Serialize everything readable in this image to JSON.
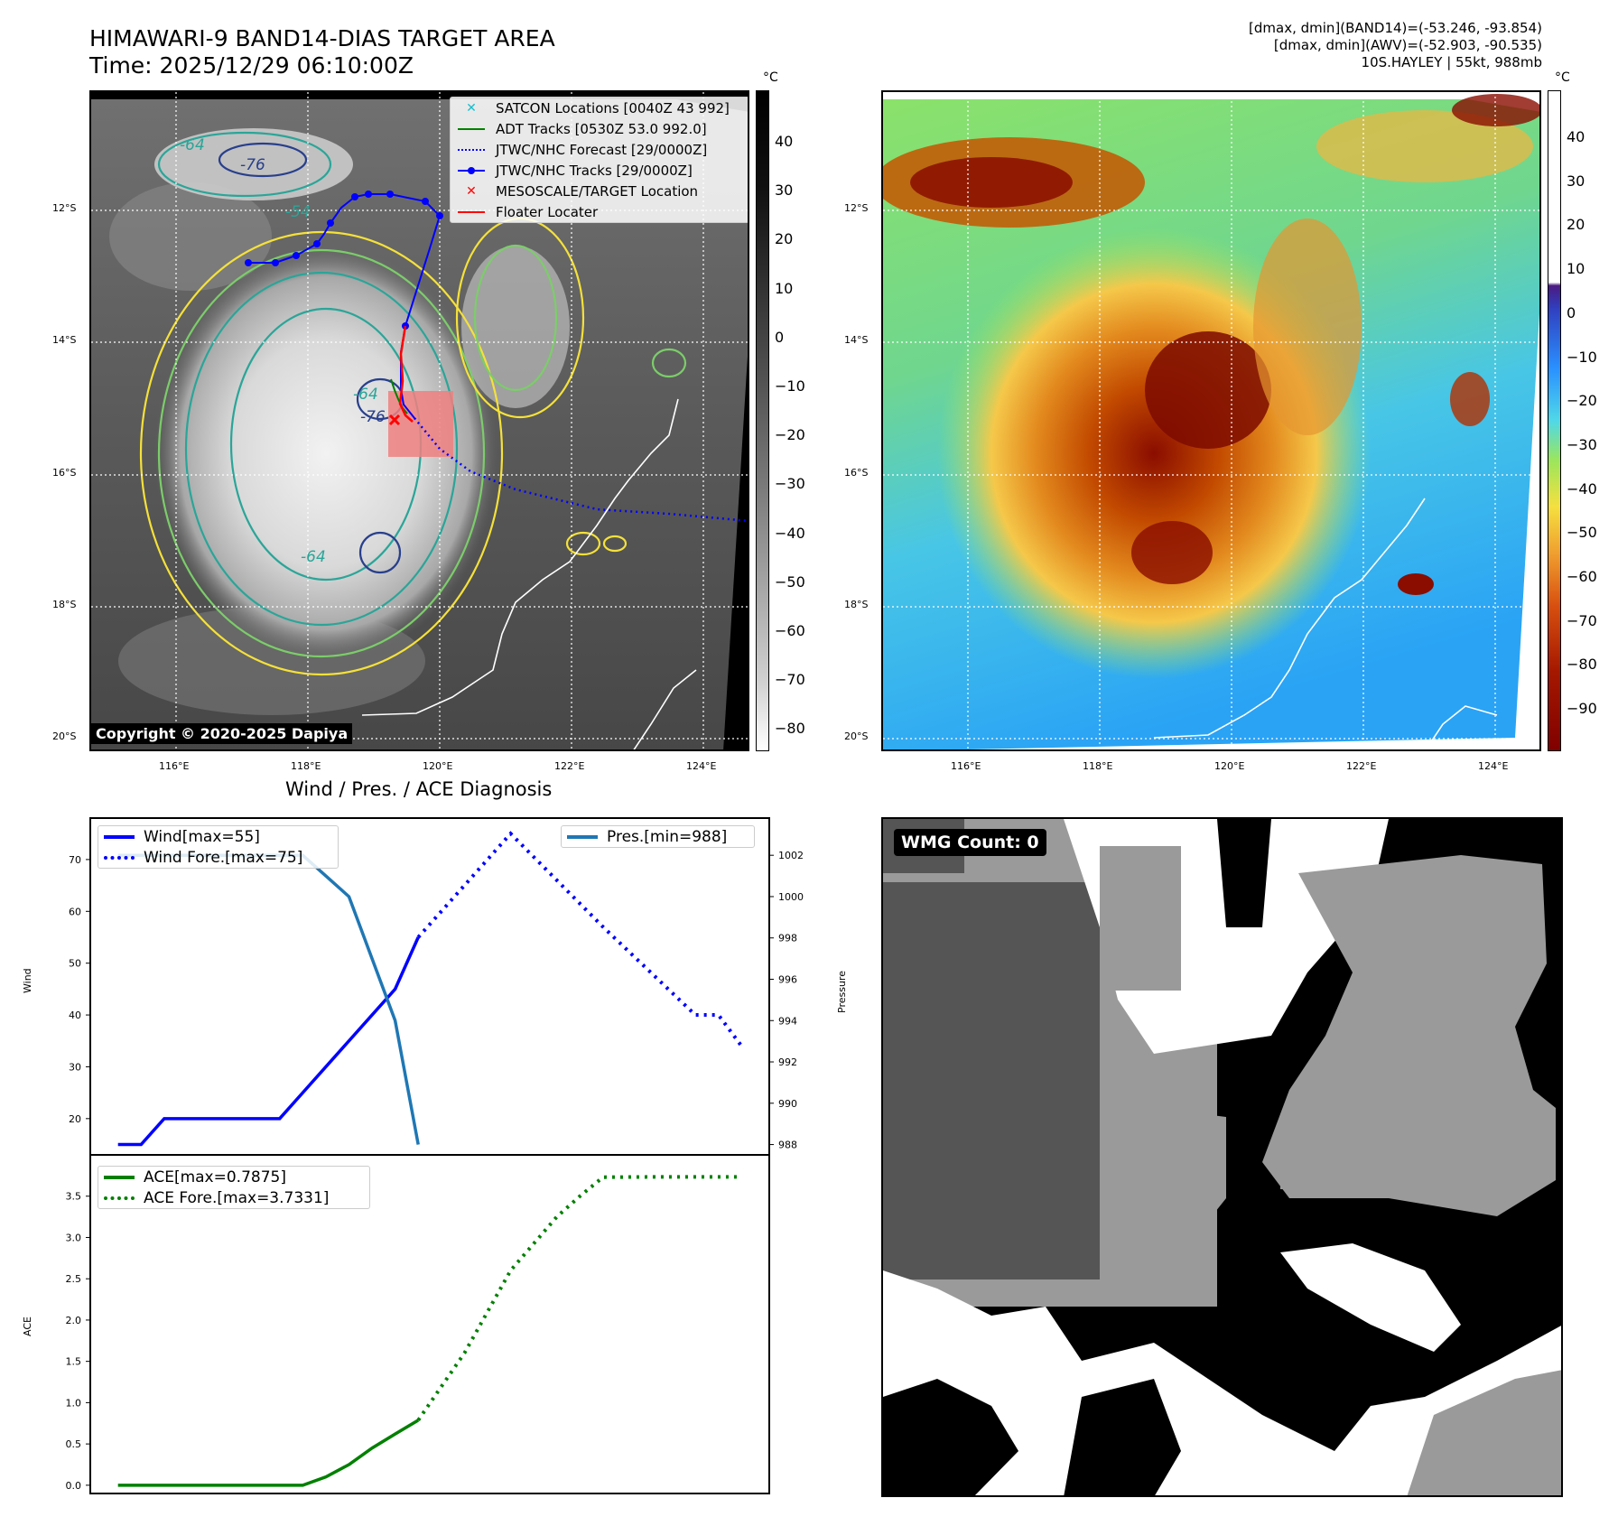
{
  "header": {
    "title_line1": "HIMAWARI-9 BAND14-DIAS TARGET AREA",
    "title_line2": "Time: 2025/12/29 06:10:00Z",
    "info_line1": "[dmax, dmin](BAND14)=(-53.246, -93.854)",
    "info_line2": "[dmax, dmin](AWV)=(-52.903, -90.535)",
    "info_line3": "10S.HAYLEY | 55kt, 988mb"
  },
  "map": {
    "lat_labels": [
      "12°S",
      "14°S",
      "16°S",
      "18°S",
      "20°S"
    ],
    "lon_labels": [
      "116°E",
      "118°E",
      "120°E",
      "122°E",
      "124°E"
    ],
    "contour_labels": [
      "-64",
      "-76",
      "-64",
      "-64",
      "-54",
      "-76"
    ],
    "copyright": "Copyright © 2020-2025 Dapiya",
    "colorbar_unit": "°C",
    "colorbar_left_ticks": [
      "40",
      "30",
      "20",
      "10",
      "0",
      "−10",
      "−20",
      "−30",
      "−40",
      "−50",
      "−60",
      "−70",
      "−80"
    ],
    "colorbar_right_ticks": [
      "40",
      "30",
      "20",
      "10",
      "0",
      "−10",
      "−20",
      "−30",
      "−40",
      "−50",
      "−60",
      "−70",
      "−80",
      "−90"
    ],
    "legend": [
      {
        "label": "SATCON Locations [0040Z 43 992]",
        "color": "#17becf"
      },
      {
        "label": "ADT Tracks [0530Z 53.0 992.0]",
        "color": "#008000"
      },
      {
        "label": "JTWC/NHC Forecast [29/0000Z]",
        "color": "#0000ff"
      },
      {
        "label": "JTWC/NHC Tracks [29/0000Z]",
        "color": "#0000ff"
      },
      {
        "label": "MESOSCALE/TARGET Location",
        "color": "#ff0000"
      },
      {
        "label": "Floater Locater",
        "color": "#ff0000"
      }
    ]
  },
  "diagnosis": {
    "title": "Wind / Pres. / ACE Diagnosis",
    "wind_ylabel": "Wind",
    "pres_ylabel": "Pressure",
    "ace_ylabel": "ACE",
    "legend_wind": "Wind[max=55]",
    "legend_wind_fore": "Wind Fore.[max=75]",
    "legend_pres": "Pres.[min=988]",
    "legend_ace": "ACE[max=0.7875]",
    "legend_ace_fore": "ACE Fore.[max=3.7331]"
  },
  "wmg": {
    "label": "WMG Count: 0"
  },
  "chart_data": [
    {
      "type": "line",
      "title": "Wind / Pres. / ACE Diagnosis",
      "x": [
        0,
        1,
        2,
        3,
        4,
        5,
        6,
        7,
        8,
        9,
        10,
        11,
        12,
        13
      ],
      "series": [
        {
          "name": "Wind[max=55]",
          "axis": "left",
          "values": [
            15,
            15,
            20,
            20,
            20,
            20,
            20,
            20,
            25,
            30,
            35,
            40,
            45,
            55
          ]
        },
        {
          "name": "Pres.[min=988]",
          "axis": "right",
          "values": [
            1002,
            1002,
            1002,
            1002,
            1002,
            1002,
            1002,
            1002,
            1002,
            1001,
            1000,
            997,
            994,
            988
          ]
        }
      ],
      "forecast": {
        "name": "Wind Fore.[max=75]",
        "x": [
          13,
          17,
          21,
          25,
          26,
          27
        ],
        "values": [
          55,
          75,
          57,
          40,
          40,
          34
        ]
      },
      "ylabel": "Wind",
      "ylabel_right": "Pressure",
      "ylim": [
        13,
        78
      ],
      "ylim_right": [
        987.5,
        1003.8
      ],
      "yticks": [
        20,
        30,
        40,
        50,
        60,
        70
      ],
      "yticks_right": [
        988,
        990,
        992,
        994,
        996,
        998,
        1000,
        1002
      ]
    },
    {
      "type": "line",
      "x": [
        0,
        1,
        2,
        3,
        4,
        5,
        6,
        7,
        8,
        9,
        10,
        11,
        12,
        13
      ],
      "series": [
        {
          "name": "ACE[max=0.7875]",
          "values": [
            0,
            0,
            0,
            0,
            0,
            0,
            0,
            0,
            0,
            0.1,
            0.25,
            0.45,
            0.62,
            0.7875
          ]
        }
      ],
      "forecast": {
        "name": "ACE Fore.[max=3.7331]",
        "x": [
          13,
          15,
          17,
          19,
          20,
          21,
          23,
          25,
          27
        ],
        "values": [
          0.7875,
          1.6,
          2.6,
          3.25,
          3.5,
          3.73,
          3.7331,
          3.7331,
          3.7331
        ]
      },
      "ylabel": "ACE",
      "ylim": [
        -0.1,
        4.0
      ],
      "yticks": [
        0.0,
        0.5,
        1.0,
        1.5,
        2.0,
        2.5,
        3.0,
        3.5
      ]
    }
  ]
}
